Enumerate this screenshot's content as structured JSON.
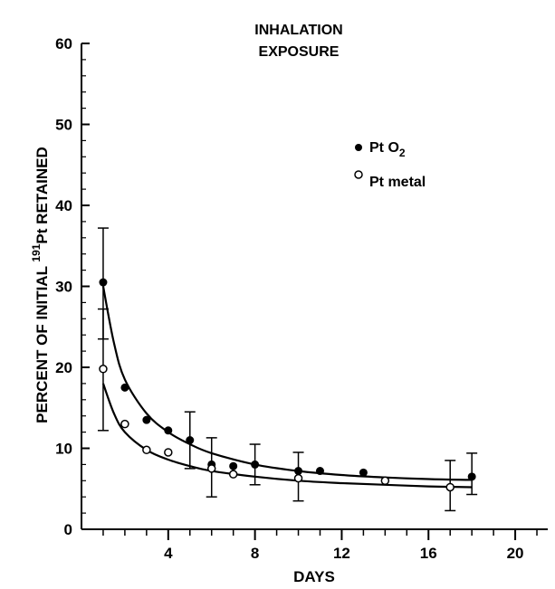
{
  "chart_data": {
    "type": "scatter",
    "title_lines": [
      "INHALATION",
      "EXPOSURE"
    ],
    "xlabel": "DAYS",
    "ylabel": "PERCENT OF INITIAL",
    "ylabel_isotope_mass": "191",
    "ylabel_isotope_symbol": "Pt",
    "ylabel_suffix": "RETAINED",
    "xlim": [
      0,
      21.5
    ],
    "ylim": [
      0,
      60
    ],
    "x_ticks": [
      4,
      8,
      12,
      16,
      20
    ],
    "x_tick_labels": [
      "4",
      "8",
      "12",
      "16",
      "20"
    ],
    "y_ticks": [
      0,
      10,
      20,
      30,
      40,
      50,
      60
    ],
    "y_tick_labels": [
      "0",
      "10",
      "20",
      "30",
      "40",
      "50",
      "60"
    ],
    "grid": false,
    "legend_position": "upper-right",
    "series": [
      {
        "name_main": "Pt O",
        "name_sub": "2",
        "marker": "filled-circle",
        "x": [
          1,
          2,
          3,
          4,
          5,
          6,
          7,
          8,
          10,
          11,
          13,
          18
        ],
        "y": [
          30.5,
          17.5,
          13.5,
          12.2,
          11.0,
          8.0,
          7.8,
          8.0,
          7.2,
          7.2,
          7.0,
          6.5
        ],
        "error_bars": [
          {
            "x": 1,
            "low": 23.5,
            "high": 37.2
          },
          {
            "x": 5,
            "low": 7.5,
            "high": 14.5
          },
          {
            "x": 6,
            "low": 4.0,
            "high": 11.3
          },
          {
            "x": 8,
            "low": 5.5,
            "high": 10.5
          },
          {
            "x": 10,
            "low": 3.5,
            "high": 9.5
          },
          {
            "x": 18,
            "low": 4.3,
            "high": 9.4
          }
        ],
        "fit_curve": [
          [
            1,
            30.0
          ],
          [
            1.5,
            23.0
          ],
          [
            2,
            18.5
          ],
          [
            3,
            14.3
          ],
          [
            4,
            12.0
          ],
          [
            5,
            10.5
          ],
          [
            6,
            9.4
          ],
          [
            8,
            8.0
          ],
          [
            10,
            7.2
          ],
          [
            12,
            6.7
          ],
          [
            14,
            6.4
          ],
          [
            16,
            6.2
          ],
          [
            18,
            6.1
          ]
        ]
      },
      {
        "name": "Pt metal",
        "marker": "open-circle",
        "x": [
          1,
          2,
          3,
          4,
          6,
          7,
          10,
          14,
          17
        ],
        "y": [
          19.8,
          13.0,
          9.8,
          9.5,
          7.5,
          6.8,
          6.3,
          6.0,
          5.2
        ],
        "error_bars": [
          {
            "x": 1,
            "low": 12.2,
            "high": 27.2
          },
          {
            "x": 17,
            "low": 2.3,
            "high": 8.5
          }
        ],
        "fit_curve": [
          [
            1,
            18.0
          ],
          [
            1.5,
            14.3
          ],
          [
            2,
            12.0
          ],
          [
            3,
            9.8
          ],
          [
            4,
            8.6
          ],
          [
            5,
            7.8
          ],
          [
            6,
            7.2
          ],
          [
            8,
            6.5
          ],
          [
            10,
            6.0
          ],
          [
            12,
            5.7
          ],
          [
            14,
            5.5
          ],
          [
            16,
            5.3
          ],
          [
            18,
            5.2
          ]
        ]
      }
    ]
  }
}
